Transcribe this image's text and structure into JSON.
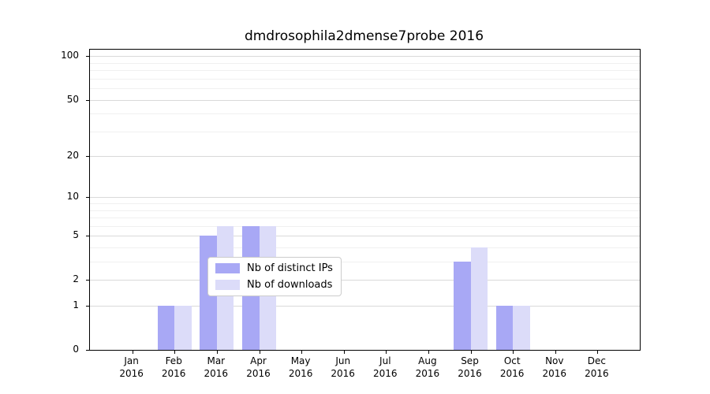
{
  "title": "dmdrosophila2dmense7probe 2016",
  "chart_data": {
    "type": "bar",
    "title": "dmdrosophila2dmense7probe 2016",
    "categories": [
      "Jan",
      "Feb",
      "Mar",
      "Apr",
      "May",
      "Jun",
      "Jul",
      "Aug",
      "Sep",
      "Oct",
      "Nov",
      "Dec"
    ],
    "category_year": "2016",
    "series": [
      {
        "name": "Nb of distinct IPs",
        "color": "#a8a8f5",
        "values": [
          0,
          1,
          5,
          6,
          0,
          0,
          0,
          0,
          3,
          1,
          0,
          0
        ]
      },
      {
        "name": "Nb of downloads",
        "color": "#dcdcf9",
        "values": [
          0,
          1,
          6,
          6,
          0,
          0,
          0,
          0,
          4,
          1,
          0,
          0
        ]
      }
    ],
    "xlabel": "",
    "ylabel": "",
    "y_scale": "log10(1+v)",
    "y_ticks": [
      0,
      1,
      2,
      5,
      10,
      20,
      50,
      100
    ],
    "ylim": [
      0,
      111
    ],
    "grid": "horizontal major and minor gridlines on",
    "legend_position": "inside plot, lower center"
  },
  "colors": {
    "bar_distinct_ips": "#a8a8f5",
    "bar_downloads": "#dcdcf9",
    "gridline_major": "#d9d9d9",
    "gridline_minor": "#f0f0f0",
    "axis": "#000000",
    "legend_border": "#cccccc",
    "background": "#ffffff"
  }
}
